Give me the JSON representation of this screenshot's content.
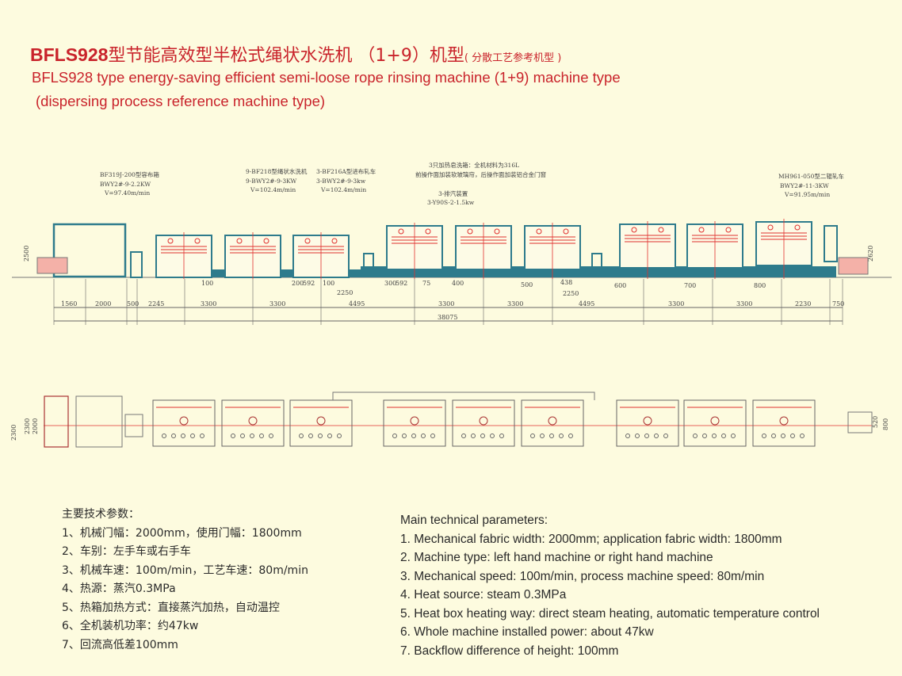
{
  "title": {
    "cn_model": "BFLS928",
    "cn_main": "型节能高效型半松式绳状水洗机 （1+9）机型",
    "cn_sub": "( 分散工艺参考机型 )",
    "en_line1": "BFLS928 type energy-saving efficient semi-loose rope rinsing machine (1+9) machine type",
    "en_line2": "(dispersing process reference machine type)"
  },
  "colors": {
    "background": "#fdfbdf",
    "title": "#c9232b",
    "machine_base": "#2e7b8c",
    "fabric_line": "#e0312f",
    "tank": "#f4b1a8"
  },
  "callouts": {
    "storage_box": [
      "BF319J-200型容布箱",
      "BWY2#-9-2.2KW",
      "V=97.40m/min"
    ],
    "rope_washer": [
      "9-BF218型绳状水洗机",
      "9-BWY2#-9-3KW",
      "V=102.4m/min"
    ],
    "feed_padder": [
      "3-BF216A型进布轧车",
      "3-BWY2#-9-3kw",
      "V=102.4m/min"
    ],
    "heating_note": [
      "3只加热皂洗箱：全机材料为316L",
      "前操作面加装软玻璃帘，后操作面加装铝合金门窗"
    ],
    "exhaust": [
      "3-排汽装置",
      "3-Y90S-2-1.5kw"
    ],
    "two_roll_padder": [
      "MH961-050型二辊轧车",
      "BWY2#-11-3KW",
      "V=91.95m/min"
    ]
  },
  "elevation": {
    "height_left": "2500",
    "height_right": "2620",
    "levels": [
      "100",
      "200",
      "592",
      "100",
      "300",
      "592",
      "75",
      "400",
      "500",
      "438",
      "600",
      "700",
      "800"
    ],
    "sub_dims": [
      "2250",
      "2250"
    ],
    "dims": [
      "1560",
      "2000",
      "500",
      "2245",
      "3300",
      "3300",
      "4495",
      "3300",
      "3300",
      "4495",
      "3300",
      "3300",
      "2230",
      "750"
    ],
    "total": "38075"
  },
  "plan": {
    "left_dims": [
      "2300",
      "2300",
      "2000"
    ],
    "right_dims": [
      "520",
      "800"
    ]
  },
  "params_cn": {
    "heading": "主要技术参数：",
    "items": [
      "1、机械门幅：2000mm，使用门幅：1800mm",
      "2、车别：左手车或右手车",
      "3、机械车速：100m/min，工艺车速：80m/min",
      "4、热源：蒸汽0.3MPa",
      "5、热箱加热方式：直接蒸汽加热，自动温控",
      "6、全机装机功率：约47kw",
      "7、回流高低差100mm"
    ]
  },
  "params_en": {
    "heading": "Main technical parameters:",
    "items": [
      "1. Mechanical fabric width: 2000mm; application fabric width: 1800mm",
      "2. Machine type: left hand machine or right hand machine",
      "3. Mechanical speed: 100m/min, process machine speed: 80m/min",
      "4. Heat source: steam 0.3MPa",
      "5. Heat box heating way: direct steam heating, automatic temperature control",
      "6. Whole machine installed power: about 47kw",
      "7. Backflow difference of height: 100mm"
    ]
  }
}
